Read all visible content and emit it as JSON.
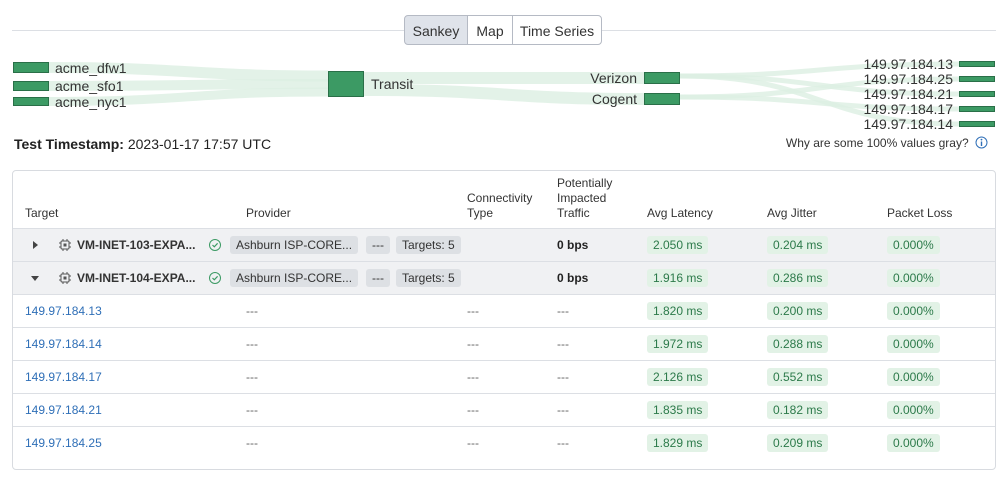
{
  "tabs": {
    "items": [
      "Sankey",
      "Map",
      "Time Series"
    ],
    "active": 0
  },
  "sankey": {
    "sources": [
      "acme_dfw1",
      "acme_sfo1",
      "acme_nyc1"
    ],
    "transit": "Transit",
    "providers": [
      "Verizon",
      "Cogent"
    ],
    "targets": [
      "149.97.184.13",
      "149.97.184.25",
      "149.97.184.21",
      "149.97.184.17",
      "149.97.184.14"
    ]
  },
  "timestamp": {
    "label": "Test Timestamp:",
    "value": "2023-01-17 17:57 UTC"
  },
  "help": "Why are some 100% values gray?",
  "table": {
    "headers": [
      "Target",
      "Provider",
      "Connectivity Type",
      "Potentially Impacted Traffic",
      "Avg Latency",
      "Avg Jitter",
      "Packet Loss"
    ],
    "groups": [
      {
        "target": "VM-INET-103-EXPA...",
        "provider": "Ashburn ISP-CORE...",
        "connectivity": "---",
        "targets": "Targets: 5",
        "traffic": "0 bps",
        "latency": "2.050 ms",
        "jitter": "0.204 ms",
        "loss": "0.000%",
        "expanded": false
      },
      {
        "target": "VM-INET-104-EXPA...",
        "provider": "Ashburn ISP-CORE...",
        "connectivity": "---",
        "targets": "Targets: 5",
        "traffic": "0 bps",
        "latency": "1.916 ms",
        "jitter": "0.286 ms",
        "loss": "0.000%",
        "expanded": true
      }
    ],
    "rows": [
      {
        "target": "149.97.184.13",
        "provider": "---",
        "connectivity": "---",
        "traffic": "---",
        "latency": "1.820 ms",
        "jitter": "0.200 ms",
        "loss": "0.000%"
      },
      {
        "target": "149.97.184.14",
        "provider": "---",
        "connectivity": "---",
        "traffic": "---",
        "latency": "1.972 ms",
        "jitter": "0.288 ms",
        "loss": "0.000%"
      },
      {
        "target": "149.97.184.17",
        "provider": "---",
        "connectivity": "---",
        "traffic": "---",
        "latency": "2.126 ms",
        "jitter": "0.552 ms",
        "loss": "0.000%"
      },
      {
        "target": "149.97.184.21",
        "provider": "---",
        "connectivity": "---",
        "traffic": "---",
        "latency": "1.835 ms",
        "jitter": "0.182 ms",
        "loss": "0.000%"
      },
      {
        "target": "149.97.184.25",
        "provider": "---",
        "connectivity": "---",
        "traffic": "---",
        "latency": "1.829 ms",
        "jitter": "0.209 ms",
        "loss": "0.000%"
      }
    ]
  }
}
